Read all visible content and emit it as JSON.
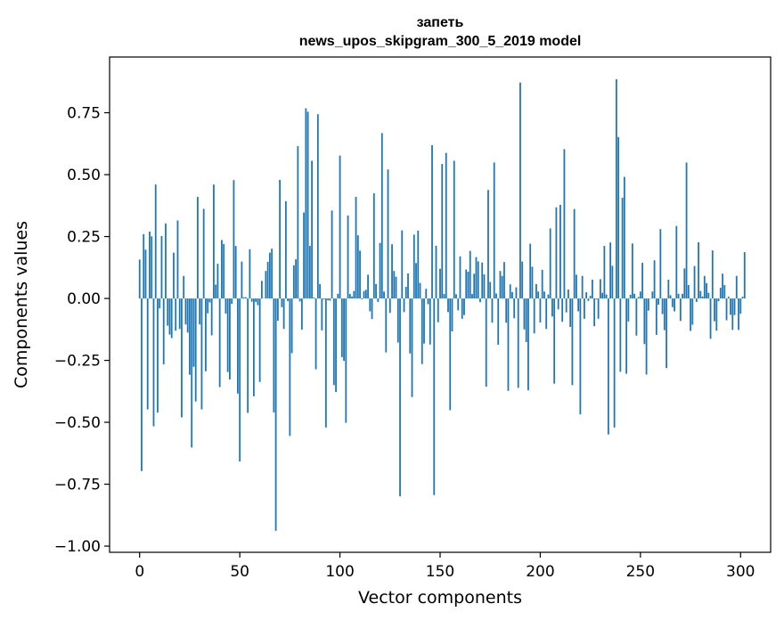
{
  "chart_data": {
    "type": "bar",
    "title_line1": "запеть",
    "title_line2": "news_upos_skipgram_300_5_2019 model",
    "xlabel": "Vector components",
    "ylabel": "Components values",
    "xlim": [
      -15,
      315
    ],
    "ylim": [
      -1.025,
      0.975
    ],
    "xticks": [
      0,
      50,
      100,
      150,
      200,
      250,
      300
    ],
    "yticks": [
      0.75,
      0.5,
      0.25,
      0.0,
      -0.25,
      -0.5,
      -0.75,
      -1.0
    ],
    "ytick_labels": [
      "0.75",
      "0.50",
      "0.25",
      "0.00",
      "−0.25",
      "−0.50",
      "−0.75",
      "−1.00"
    ],
    "bar_color": "#1f77b4",
    "grid": false,
    "x_start": 0,
    "values": [
      0.157,
      -0.697,
      0.26,
      0.197,
      -0.448,
      0.27,
      0.251,
      -0.516,
      0.46,
      -0.461,
      -0.04,
      0.252,
      -0.266,
      0.303,
      -0.11,
      -0.146,
      -0.16,
      0.185,
      -0.13,
      0.315,
      -0.123,
      -0.48,
      0.091,
      -0.105,
      -0.138,
      -0.308,
      -0.602,
      -0.276,
      -0.416,
      0.41,
      -0.105,
      -0.448,
      0.362,
      -0.294,
      -0.06,
      -0.016,
      -0.149,
      0.46,
      0.056,
      0.14,
      -0.358,
      0.236,
      0.22,
      -0.061,
      -0.297,
      -0.327,
      -0.022,
      0.478,
      0.212,
      -0.384,
      -0.658,
      0.149,
      0.005,
      0.005,
      -0.462,
      0.199,
      -0.013,
      -0.395,
      -0.014,
      -0.027,
      -0.337,
      0.071,
      0.001,
      0.111,
      0.148,
      0.185,
      0.201,
      -0.46,
      -0.938,
      -0.09,
      0.479,
      -0.035,
      -0.123,
      0.393,
      -0.011,
      -0.555,
      -0.221,
      0.134,
      0.158,
      0.615,
      -0.012,
      -0.126,
      0.347,
      0.768,
      0.754,
      0.212,
      0.556,
      0.004,
      -0.286,
      0.744,
      0.058,
      -0.129,
      -0.004,
      -0.521,
      -0.007,
      -0.009,
      0.355,
      -0.35,
      -0.378,
      0.019,
      0.577,
      -0.237,
      -0.252,
      -0.502,
      0.335,
      0.018,
      0.008,
      0.03,
      0.41,
      0.255,
      0.193,
      -0.004,
      0.03,
      0.035,
      0.096,
      -0.052,
      -0.083,
      0.425,
      0.058,
      -0.014,
      0.224,
      0.668,
      0.028,
      -0.218,
      0.521,
      -0.058,
      0.219,
      0.111,
      0.088,
      -0.178,
      -0.799,
      0.275,
      -0.055,
      0.047,
      0.101,
      -0.222,
      -0.398,
      0.258,
      0.143,
      0.274,
      0.063,
      -0.265,
      -0.182,
      0.039,
      -0.023,
      -0.186,
      0.619,
      -0.794,
      0.213,
      -0.096,
      0.12,
      0.543,
      0.018,
      0.588,
      -0.055,
      -0.451,
      -0.133,
      0.556,
      0.017,
      -0.048,
      0.17,
      -0.082,
      -0.067,
      0.117,
      0.108,
      0.192,
      0.018,
      0.1,
      0.167,
      0.15,
      -0.015,
      0.145,
      0.097,
      -0.356,
      0.438,
      0.067,
      -0.098,
      0.549,
      0.02,
      -0.187,
      0.111,
      0.091,
      0.147,
      -0.098,
      -0.373,
      0.057,
      0.026,
      -0.08,
      0.045,
      -0.361,
      0.872,
      0.149,
      -0.125,
      -0.176,
      -0.371,
      0.221,
      0.128,
      -0.141,
      0.058,
      0.028,
      -0.097,
      0.116,
      0.028,
      -0.123,
      0.016,
      0.283,
      -0.073,
      -0.344,
      0.368,
      -0.044,
      0.378,
      -0.094,
      0.603,
      -0.056,
      0.036,
      -0.115,
      -0.35,
      0.361,
      0.096,
      -0.052,
      -0.468,
      0.091,
      -0.082,
      0.025,
      -0.01,
      0.011,
      0.076,
      -0.112,
      -0.004,
      -0.082,
      0.078,
      0.023,
      0.212,
      0.016,
      -0.549,
      0.226,
      0.132,
      -0.521,
      0.885,
      0.652,
      -0.296,
      0.407,
      0.491,
      -0.304,
      -0.093,
      0.015,
      0.222,
      0.019,
      -0.15,
      0.006,
      0.028,
      0.144,
      -0.184,
      -0.307,
      -0.049,
      -0.001,
      0.028,
      0.154,
      -0.147,
      -0.025,
      0.28,
      -0.063,
      -0.128,
      -0.281,
      0.076,
      0.013,
      -0.035,
      -0.052,
      0.293,
      0.019,
      -0.091,
      0.019,
      0.121,
      0.549,
      0.054,
      -0.131,
      -0.106,
      0.131,
      -0.014,
      0.227,
      0.03,
      0.008,
      0.091,
      0.062,
      0.023,
      -0.163,
      0.194,
      -0.092,
      -0.13,
      -0.011,
      0.043,
      0.1,
      0.054,
      -0.088,
      0.007,
      -0.066,
      -0.127,
      -0.067,
      0.091,
      -0.127,
      -0.062,
      0.007,
      0.187
    ]
  }
}
